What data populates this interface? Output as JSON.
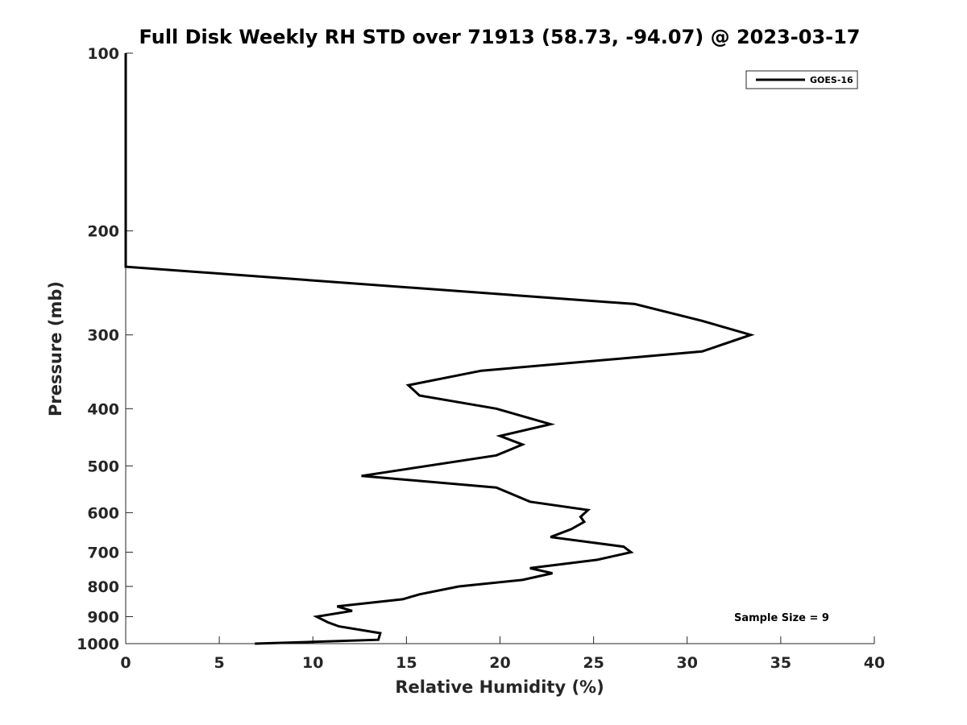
{
  "chart_data": {
    "type": "line",
    "title": "Full Disk Weekly RH STD over 71913 (58.73, -94.07) @ 2023-03-17",
    "xlabel": "Relative Humidity (%)",
    "ylabel": "Pressure (mb)",
    "xlim": [
      0,
      40
    ],
    "ylim": [
      1000,
      100
    ],
    "y_scale": "log",
    "y_reversed": true,
    "grid": false,
    "legend_position": "top-right",
    "x_ticks": [
      0,
      5,
      10,
      15,
      20,
      25,
      30,
      35,
      40
    ],
    "y_ticks": [
      100,
      200,
      300,
      400,
      500,
      600,
      700,
      800,
      900,
      1000
    ],
    "x_tick_labels": [
      "0",
      "5",
      "10",
      "15",
      "20",
      "25",
      "30",
      "35",
      "40"
    ],
    "y_tick_labels": [
      "100",
      "200",
      "300",
      "400",
      "500",
      "600",
      "700",
      "800",
      "900",
      "1000"
    ],
    "series": [
      {
        "name": "GOES-16",
        "color": "#000000",
        "points": [
          [
            0,
            100
          ],
          [
            0,
            150
          ],
          [
            0,
            200
          ],
          [
            0,
            230
          ],
          [
            27.2,
            266
          ],
          [
            30.8,
            284
          ],
          [
            33.4,
            300
          ],
          [
            30.8,
            320
          ],
          [
            19.0,
            345
          ],
          [
            15.1,
            365
          ],
          [
            15.7,
            380
          ],
          [
            19.8,
            400
          ],
          [
            22.7,
            425
          ],
          [
            20.0,
            445
          ],
          [
            21.2,
            460
          ],
          [
            19.8,
            480
          ],
          [
            12.6,
            520
          ],
          [
            19.8,
            544
          ],
          [
            21.6,
            575
          ],
          [
            24.7,
            594
          ],
          [
            24.3,
            610
          ],
          [
            24.5,
            622
          ],
          [
            23.8,
            640
          ],
          [
            22.7,
            660
          ],
          [
            26.6,
            685
          ],
          [
            27.0,
            700
          ],
          [
            25.2,
            721
          ],
          [
            21.6,
            745
          ],
          [
            22.8,
            760
          ],
          [
            21.2,
            780
          ],
          [
            17.8,
            800
          ],
          [
            15.7,
            825
          ],
          [
            14.8,
            841
          ],
          [
            11.3,
            865
          ],
          [
            12.1,
            880
          ],
          [
            10.2,
            900
          ],
          [
            10.8,
            920
          ],
          [
            11.4,
            935
          ],
          [
            13.6,
            960
          ],
          [
            13.5,
            985
          ],
          [
            6.9,
            1000
          ]
        ]
      }
    ],
    "annotations": [
      "Sample Size = 9"
    ]
  }
}
